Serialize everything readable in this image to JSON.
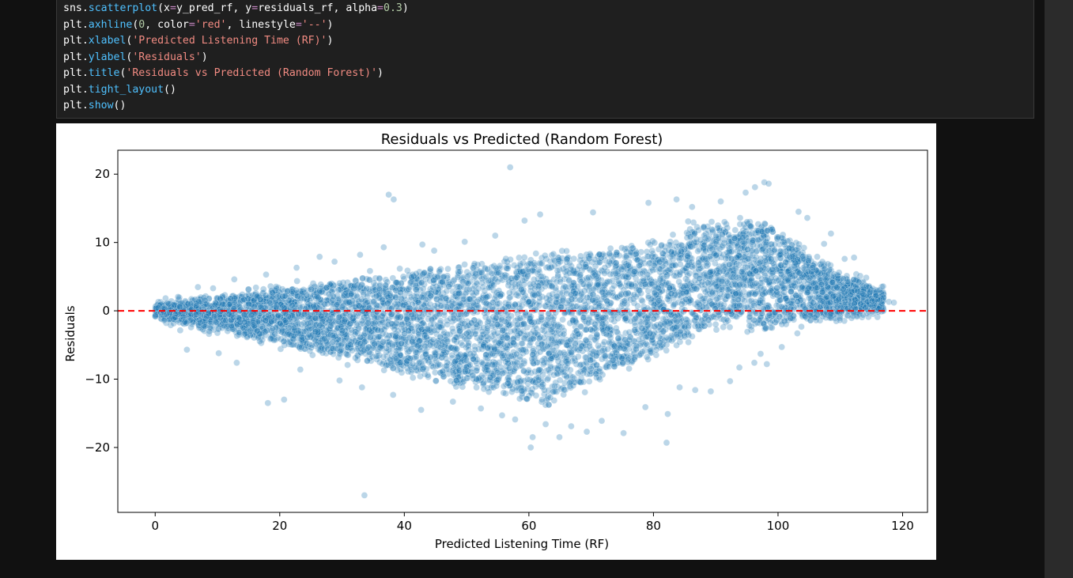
{
  "code": {
    "lines": [
      [
        {
          "t": "sns.",
          "c": "plain"
        },
        {
          "t": "scatterplot",
          "c": "fn"
        },
        {
          "t": "(x",
          "c": "plain"
        },
        {
          "t": "=",
          "c": "op"
        },
        {
          "t": "y_pred_rf, y",
          "c": "plain"
        },
        {
          "t": "=",
          "c": "op"
        },
        {
          "t": "residuals_rf, alpha",
          "c": "plain"
        },
        {
          "t": "=",
          "c": "op"
        },
        {
          "t": "0.3",
          "c": "num"
        },
        {
          "t": ")",
          "c": "plain"
        }
      ],
      [
        {
          "t": "plt.",
          "c": "plain"
        },
        {
          "t": "axhline",
          "c": "fn"
        },
        {
          "t": "(",
          "c": "plain"
        },
        {
          "t": "0",
          "c": "num"
        },
        {
          "t": ", color",
          "c": "plain"
        },
        {
          "t": "=",
          "c": "op"
        },
        {
          "t": "'red'",
          "c": "str"
        },
        {
          "t": ", linestyle",
          "c": "plain"
        },
        {
          "t": "=",
          "c": "op"
        },
        {
          "t": "'--'",
          "c": "str"
        },
        {
          "t": ")",
          "c": "plain"
        }
      ],
      [
        {
          "t": "plt.",
          "c": "plain"
        },
        {
          "t": "xlabel",
          "c": "fn"
        },
        {
          "t": "(",
          "c": "plain"
        },
        {
          "t": "'Predicted Listening Time (RF)'",
          "c": "str"
        },
        {
          "t": ")",
          "c": "plain"
        }
      ],
      [
        {
          "t": "plt.",
          "c": "plain"
        },
        {
          "t": "ylabel",
          "c": "fn"
        },
        {
          "t": "(",
          "c": "plain"
        },
        {
          "t": "'Residuals'",
          "c": "str"
        },
        {
          "t": ")",
          "c": "plain"
        }
      ],
      [
        {
          "t": "plt.",
          "c": "plain"
        },
        {
          "t": "title",
          "c": "fn"
        },
        {
          "t": "(",
          "c": "plain"
        },
        {
          "t": "'Residuals vs Predicted (Random Forest)'",
          "c": "str"
        },
        {
          "t": ")",
          "c": "plain"
        }
      ],
      [
        {
          "t": "plt.",
          "c": "plain"
        },
        {
          "t": "tight_layout",
          "c": "fn"
        },
        {
          "t": "()",
          "c": "plain"
        }
      ],
      [
        {
          "t": "plt.",
          "c": "plain"
        },
        {
          "t": "show",
          "c": "fn"
        },
        {
          "t": "()",
          "c": "plain"
        }
      ]
    ]
  },
  "chart_data": {
    "type": "scatter",
    "title": "Residuals vs Predicted (Random Forest)",
    "xlabel": "Predicted Listening Time (RF)",
    "ylabel": "Residuals",
    "xlim": [
      -6,
      124
    ],
    "ylim": [
      -29.5,
      23.5
    ],
    "xticks": [
      0,
      20,
      40,
      60,
      80,
      100,
      120
    ],
    "yticks": [
      20,
      10,
      0,
      -10,
      -20
    ],
    "xtick_labels": [
      "0",
      "20",
      "40",
      "60",
      "80",
      "100",
      "120"
    ],
    "ytick_labels": [
      "20",
      "10",
      "0",
      "−10",
      "−20"
    ],
    "grid": false,
    "point_color": "#1f77b4",
    "point_alpha": 0.3,
    "reference_line": {
      "y": 0,
      "color": "#ff0000",
      "linestyle": "dashed"
    },
    "points": [
      {
        "x": 57,
        "y": 21
      },
      {
        "x": 37.5,
        "y": 17
      },
      {
        "x": 38.3,
        "y": 16.3
      },
      {
        "x": 97.8,
        "y": 18.8
      },
      {
        "x": 98.5,
        "y": 18.6
      },
      {
        "x": 83.7,
        "y": 16.3
      },
      {
        "x": 94.8,
        "y": 17.3
      },
      {
        "x": 96.3,
        "y": 18.1
      },
      {
        "x": 61.8,
        "y": 14.1
      },
      {
        "x": 59.3,
        "y": 13.2
      },
      {
        "x": 70.3,
        "y": 14.4
      },
      {
        "x": 90.8,
        "y": 16
      },
      {
        "x": 86.2,
        "y": 15.2
      },
      {
        "x": 79.2,
        "y": 15.8
      },
      {
        "x": 33.6,
        "y": -27
      },
      {
        "x": 60.3,
        "y": -20
      },
      {
        "x": 60.6,
        "y": -18.5
      },
      {
        "x": 64.9,
        "y": -18.5
      },
      {
        "x": 82.1,
        "y": -19.3
      },
      {
        "x": 75.2,
        "y": -17.9
      },
      {
        "x": 69.3,
        "y": -17.7
      },
      {
        "x": 18.1,
        "y": -13.5
      },
      {
        "x": 20.7,
        "y": -13
      },
      {
        "x": 42.7,
        "y": -14.5
      },
      {
        "x": 86.7,
        "y": -11.6
      },
      {
        "x": 89.2,
        "y": -11.8
      },
      {
        "x": 96.2,
        "y": -7.6
      },
      {
        "x": 98.2,
        "y": -7.8
      },
      {
        "x": 97.2,
        "y": -6.3
      },
      {
        "x": 116.2,
        "y": 0.3
      },
      {
        "x": 117.8,
        "y": 1.3
      },
      {
        "x": 118.6,
        "y": 1.2
      },
      {
        "x": 110.7,
        "y": 7.6
      },
      {
        "x": 107.4,
        "y": 9.8
      },
      {
        "x": 108.5,
        "y": 11.3
      },
      {
        "x": 112.2,
        "y": 7.8
      },
      {
        "x": 113.2,
        "y": 5.1
      },
      {
        "x": 114.2,
        "y": 3.6
      },
      {
        "x": 104.7,
        "y": 13.6
      },
      {
        "x": 103.3,
        "y": 14.5
      },
      {
        "x": 26.4,
        "y": 7.9
      },
      {
        "x": 32.9,
        "y": 8.2
      },
      {
        "x": 36.7,
        "y": 9.3
      },
      {
        "x": 42.9,
        "y": 9.7
      },
      {
        "x": 49.7,
        "y": 10.1
      },
      {
        "x": 54.6,
        "y": 11
      },
      {
        "x": 44.8,
        "y": 8.8
      },
      {
        "x": 29.6,
        "y": -10.2
      },
      {
        "x": 33.2,
        "y": -11.2
      },
      {
        "x": 38.2,
        "y": -12.3
      },
      {
        "x": 47.8,
        "y": -13.3
      },
      {
        "x": 52.3,
        "y": -14.3
      },
      {
        "x": 55.7,
        "y": -15.3
      },
      {
        "x": 57.8,
        "y": -15.9
      },
      {
        "x": 62.7,
        "y": -16.6
      },
      {
        "x": 66.8,
        "y": -16.9
      },
      {
        "x": 71.7,
        "y": -16.1
      },
      {
        "x": 78.7,
        "y": -14.1
      },
      {
        "x": 82.3,
        "y": -15.1
      },
      {
        "x": 84.2,
        "y": -11.2
      },
      {
        "x": 92.3,
        "y": -10.3
      },
      {
        "x": 93.8,
        "y": -8.3
      },
      {
        "x": 100.6,
        "y": -5.3
      },
      {
        "x": 103.1,
        "y": -3.3
      },
      {
        "x": 105.2,
        "y": -0.7
      },
      {
        "x": 107.8,
        "y": 0.4
      },
      {
        "x": 10.2,
        "y": -6.2
      },
      {
        "x": 13.1,
        "y": -7.6
      },
      {
        "x": 23.3,
        "y": -8.6
      },
      {
        "x": 5.1,
        "y": -5.7
      },
      {
        "x": 9.3,
        "y": 3.3
      },
      {
        "x": 12.7,
        "y": 4.6
      },
      {
        "x": 17.8,
        "y": 5.3
      },
      {
        "x": 22.7,
        "y": 6.3
      },
      {
        "x": 28.8,
        "y": 7.2
      }
    ],
    "density_note": "dense cloud; band fans outward from origin"
  }
}
